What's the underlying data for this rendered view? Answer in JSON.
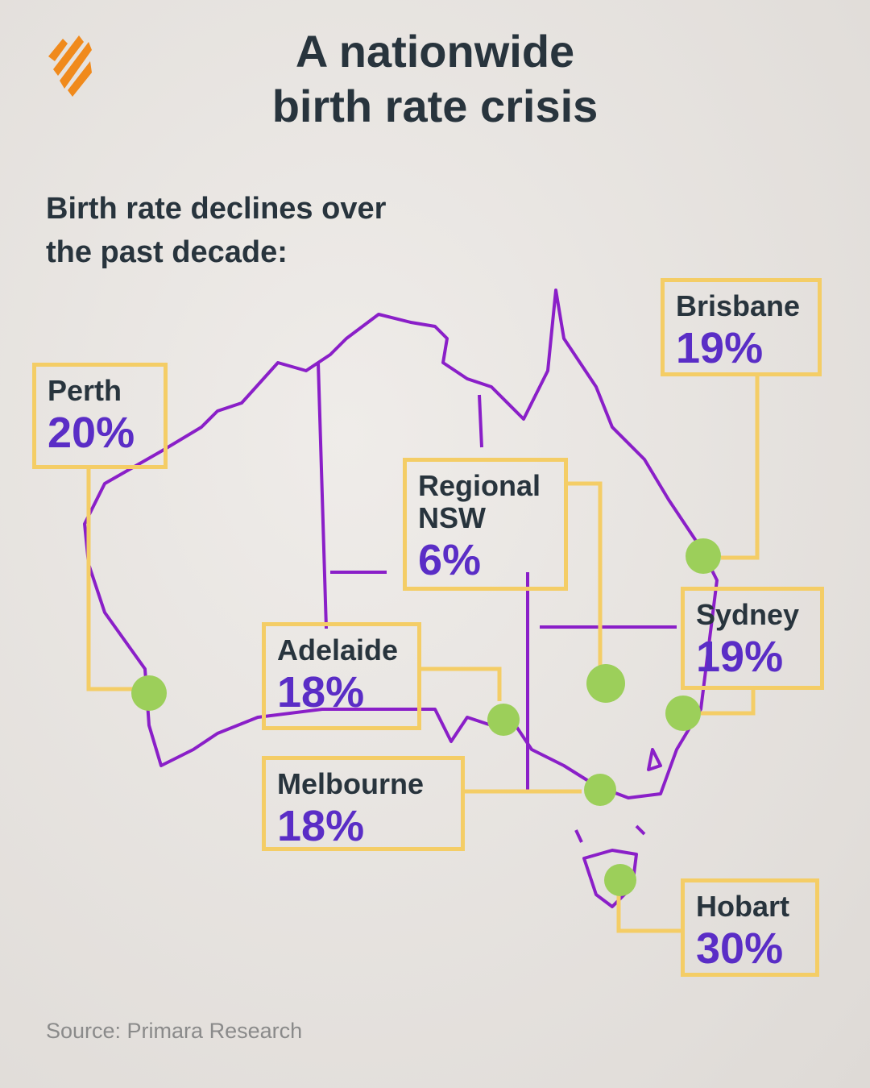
{
  "header": {
    "title": [
      "A nationwide",
      "birth rate crisis"
    ],
    "subtitle": [
      "Birth rate declines over",
      "the past decade:"
    ]
  },
  "cities": [
    {
      "name": "Brisbane",
      "value": "19%"
    },
    {
      "name": "Perth",
      "value": "20%"
    },
    {
      "name": "Regional NSW",
      "value": "6%"
    },
    {
      "name": "Adelaide",
      "value": "18%"
    },
    {
      "name": "Sydney",
      "value": "19%"
    },
    {
      "name": "Melbourne",
      "value": "18%"
    },
    {
      "name": "Hobart",
      "value": "30%"
    }
  ],
  "source": "Source: Primara Research"
}
